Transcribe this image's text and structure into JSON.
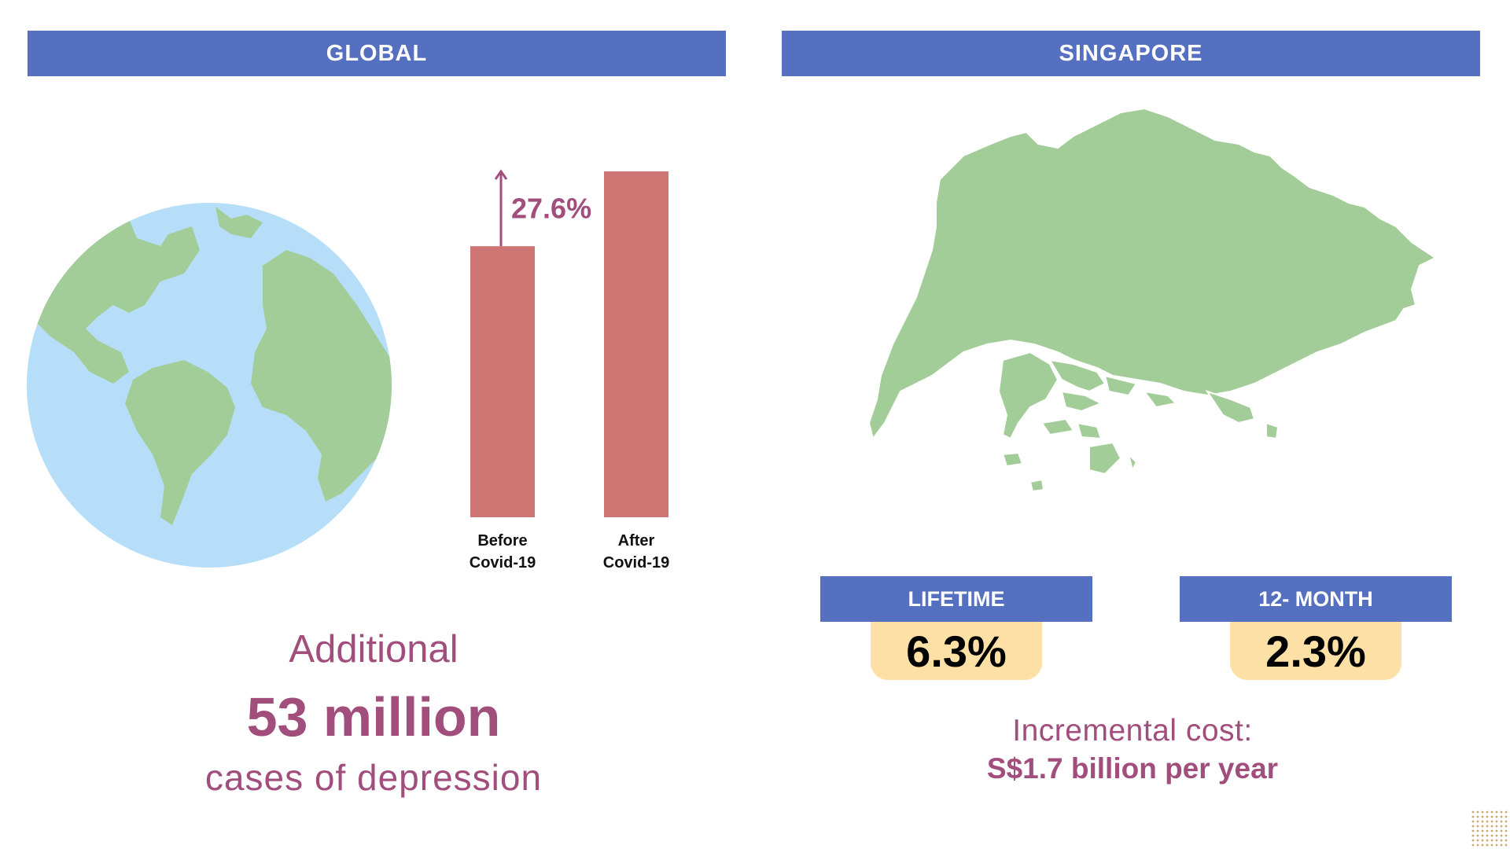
{
  "sections": {
    "global_title": "GLOBAL",
    "singapore_title": "SINGAPORE"
  },
  "chart_data": {
    "type": "bar",
    "categories": [
      "Before Covid-19",
      "After Covid-19"
    ],
    "category_lines": [
      [
        "Before",
        "Covid-19"
      ],
      [
        "After",
        "Covid-19"
      ]
    ],
    "values": [
      100,
      127.6
    ],
    "ylim": [
      0,
      127.6
    ],
    "increase_label": "27.6%",
    "bar_color": "#cf7674",
    "arrow_color": "#a24e7c",
    "title": "",
    "xlabel": "",
    "ylabel": ""
  },
  "global_stat": {
    "line1": "Additional",
    "line2": "53 million",
    "line3": "cases of depression"
  },
  "prevalence": {
    "lifetime_label": "LIFETIME",
    "lifetime_value": "6.3%",
    "month12_label": "12- MONTH",
    "month12_value": "2.3%"
  },
  "cost": {
    "label": "Incremental cost:",
    "value": "S$1.7 billion per year"
  },
  "colors": {
    "header": "#5570c0",
    "accent": "#a24e7c",
    "land": "#a3cd98",
    "ocean": "#b6def9",
    "stat_box": "#fde0a5"
  },
  "icons": {
    "globe": "earth-globe-icon",
    "map": "singapore-map-icon"
  }
}
